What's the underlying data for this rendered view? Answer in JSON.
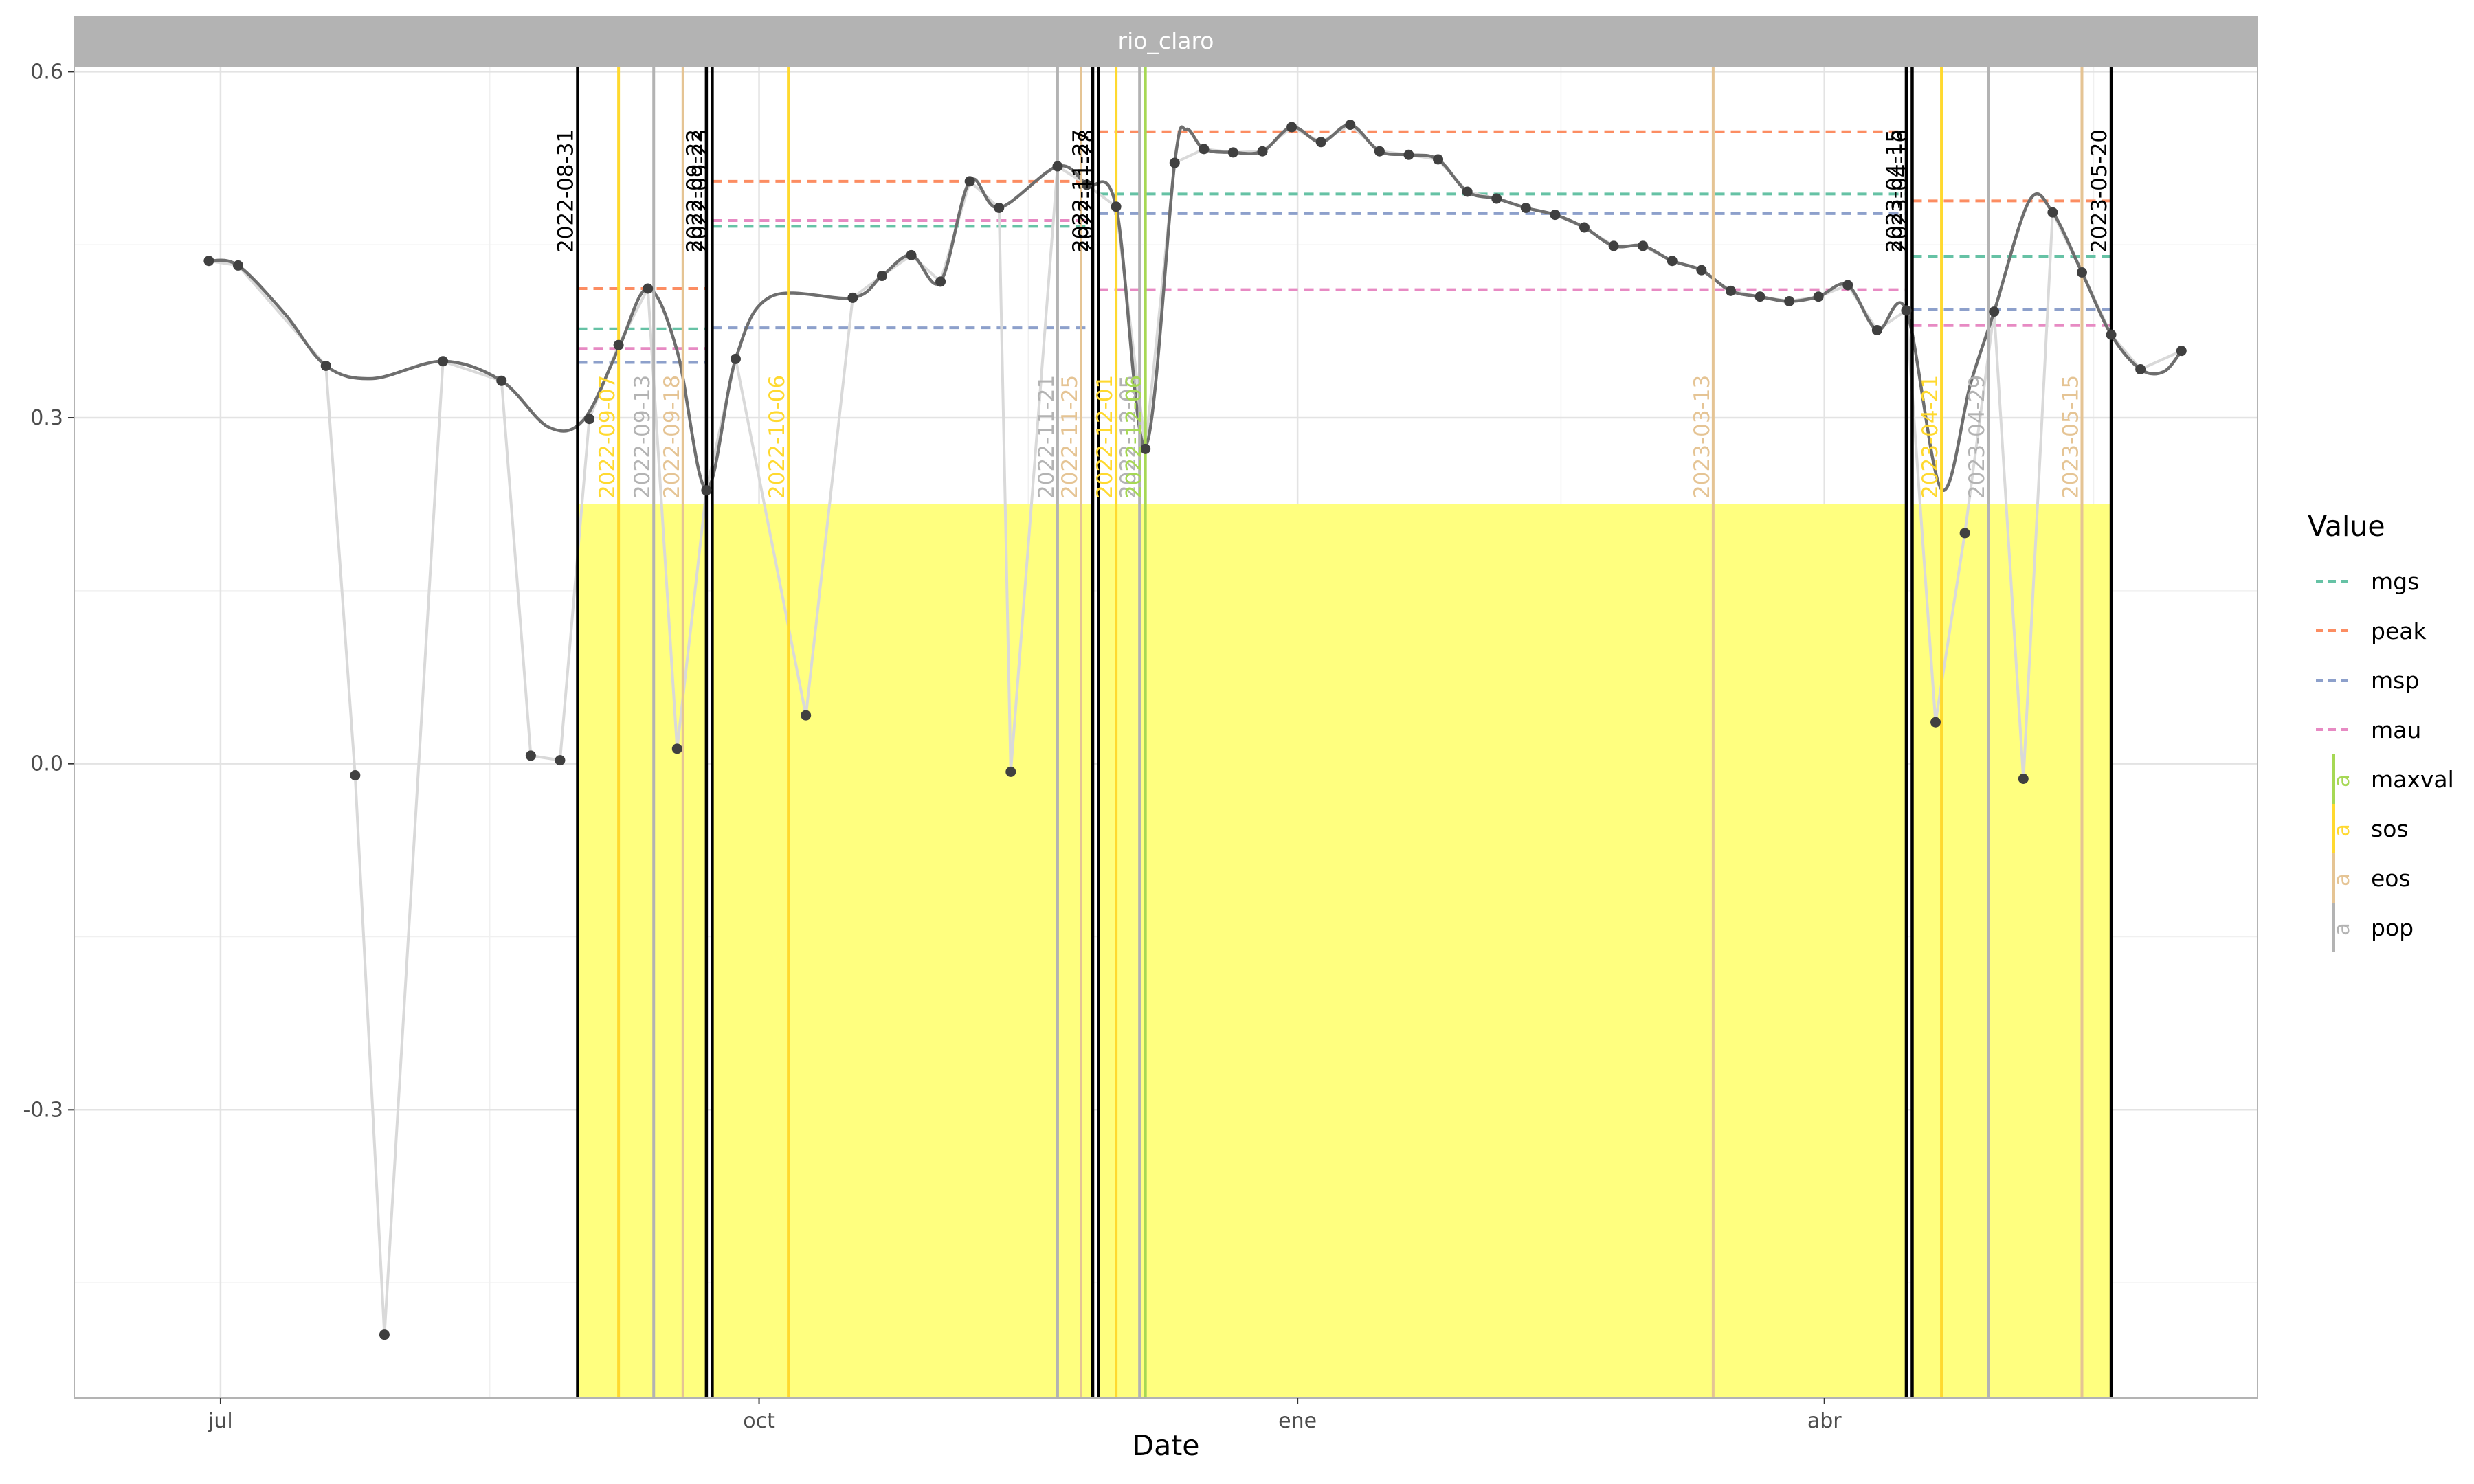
{
  "colors": {
    "mgs": "#66c2a5",
    "peak": "#fc8d62",
    "msp": "#8da0cb",
    "mau": "#e78ac3",
    "maxval": "#a6d854",
    "sos": "#ffd92f",
    "eos": "#e5c494",
    "pop": "#b3b3b3",
    "season": "#ffff7f",
    "boundary": "#000000",
    "points": "#404040",
    "smooth": "#6e6e6e",
    "raw": "#d9d9d9",
    "strip": "#b3b3b3"
  },
  "chart_data": {
    "type": "line",
    "facet": "rio_claro",
    "xlabel": "Date",
    "ylabel": "",
    "ylim": [
      -0.55,
      0.605
    ],
    "xlim": [
      "2022-06-06",
      "2023-06-14"
    ],
    "x_ticks": [
      {
        "date": "2022-07-01",
        "label": "jul"
      },
      {
        "date": "2022-10-01",
        "label": "oct"
      },
      {
        "date": "2023-01-01",
        "label": "ene"
      },
      {
        "date": "2023-04-01",
        "label": "abr"
      }
    ],
    "y_ticks": [
      {
        "value": -0.3,
        "label": "-0.3"
      },
      {
        "value": 0.0,
        "label": "0.0"
      },
      {
        "value": 0.3,
        "label": "0.3"
      },
      {
        "value": 0.6,
        "label": "0.6"
      }
    ],
    "grid": true,
    "legend": {
      "title": "Value",
      "position": "right",
      "entries": [
        {
          "key": "mgs",
          "label": "mgs",
          "kind": "dashed"
        },
        {
          "key": "peak",
          "label": "peak",
          "kind": "dashed"
        },
        {
          "key": "msp",
          "label": "msp",
          "kind": "dashed"
        },
        {
          "key": "mau",
          "label": "mau",
          "kind": "dashed"
        },
        {
          "key": "maxval",
          "label": "maxval",
          "kind": "vline",
          "glyph": "a"
        },
        {
          "key": "sos",
          "label": "sos",
          "kind": "vline",
          "glyph": "a"
        },
        {
          "key": "eos",
          "label": "eos",
          "kind": "vline",
          "glyph": "a"
        },
        {
          "key": "pop",
          "label": "pop",
          "kind": "vline",
          "glyph": "a"
        }
      ]
    },
    "seasons": [
      {
        "start": "2022-08-31",
        "end": "2022-09-22",
        "ymax": 0.225,
        "segments": {
          "mgs": 0.377,
          "peak": 0.412,
          "msp": 0.348,
          "mau": 0.36
        }
      },
      {
        "start": "2022-09-23",
        "end": "2022-11-27",
        "ymax": 0.225,
        "segments": {
          "mgs": 0.466,
          "peak": 0.505,
          "msp": 0.378,
          "mau": 0.471
        }
      },
      {
        "start": "2022-11-28",
        "end": "2023-04-15",
        "ymax": 0.225,
        "segments": {
          "mgs": 0.494,
          "peak": 0.548,
          "msp": 0.477,
          "mau": 0.411
        }
      },
      {
        "start": "2023-04-16",
        "end": "2023-05-20",
        "ymax": 0.225,
        "segments": {
          "mgs": 0.44,
          "peak": 0.488,
          "msp": 0.394,
          "mau": 0.38
        }
      }
    ],
    "boundary_lines": [
      {
        "date": "2022-08-31",
        "label": "2022-08-31"
      },
      {
        "date": "2022-09-22",
        "label": "2022-09-22"
      },
      {
        "date": "2022-09-23",
        "label": "2022-09-23"
      },
      {
        "date": "2022-11-27",
        "label": "2022-11-27"
      },
      {
        "date": "2022-11-28",
        "label": "2022-11-28"
      },
      {
        "date": "2023-04-15",
        "label": "2023-04-15"
      },
      {
        "date": "2023-04-16",
        "label": "2023-04-16"
      },
      {
        "date": "2023-05-20",
        "label": "2023-05-20"
      }
    ],
    "phenology_lines": [
      {
        "type": "sos",
        "date": "2022-09-07",
        "label": "2022-09-07"
      },
      {
        "type": "pop",
        "date": "2022-09-13",
        "label": "2022-09-13"
      },
      {
        "type": "eos",
        "date": "2022-09-18",
        "label": "2022-09-18"
      },
      {
        "type": "sos",
        "date": "2022-10-06",
        "label": "2022-10-06"
      },
      {
        "type": "pop",
        "date": "2022-11-21",
        "label": "2022-11-21"
      },
      {
        "type": "eos",
        "date": "2022-11-25",
        "label": "2022-11-25"
      },
      {
        "type": "sos",
        "date": "2022-12-01",
        "label": "2022-12-01"
      },
      {
        "type": "pop",
        "date": "2022-12-05",
        "label": "2022-12-05"
      },
      {
        "type": "maxval",
        "date": "2022-12-06",
        "label": "2022-12-06"
      },
      {
        "type": "eos",
        "date": "2023-03-13",
        "label": "2023-03-13"
      },
      {
        "type": "sos",
        "date": "2023-04-21",
        "label": "2023-04-21"
      },
      {
        "type": "pop",
        "date": "2023-04-29",
        "label": "2023-04-29"
      },
      {
        "type": "eos",
        "date": "2023-05-15",
        "label": "2023-05-15"
      }
    ],
    "raw_points": [
      {
        "x": "2022-06-29",
        "y": 0.436
      },
      {
        "x": "2022-07-04",
        "y": 0.432
      },
      {
        "x": "2022-07-19",
        "y": 0.345
      },
      {
        "x": "2022-07-24",
        "y": -0.01
      },
      {
        "x": "2022-07-29",
        "y": -0.495
      },
      {
        "x": "2022-08-08",
        "y": 0.349
      },
      {
        "x": "2022-08-18",
        "y": 0.332
      },
      {
        "x": "2022-08-23",
        "y": 0.007
      },
      {
        "x": "2022-08-28",
        "y": 0.003
      },
      {
        "x": "2022-09-02",
        "y": 0.299
      },
      {
        "x": "2022-09-07",
        "y": 0.363
      },
      {
        "x": "2022-09-12",
        "y": 0.412
      },
      {
        "x": "2022-09-17",
        "y": 0.013
      },
      {
        "x": "2022-09-22",
        "y": 0.237
      },
      {
        "x": "2022-09-27",
        "y": 0.351
      },
      {
        "x": "2022-10-09",
        "y": 0.042
      },
      {
        "x": "2022-10-17",
        "y": 0.404
      },
      {
        "x": "2022-10-22",
        "y": 0.423
      },
      {
        "x": "2022-10-27",
        "y": 0.441
      },
      {
        "x": "2022-11-01",
        "y": 0.418
      },
      {
        "x": "2022-11-06",
        "y": 0.505
      },
      {
        "x": "2022-11-11",
        "y": 0.482
      },
      {
        "x": "2022-11-13",
        "y": -0.007
      },
      {
        "x": "2022-11-21",
        "y": 0.518
      },
      {
        "x": "2022-11-26",
        "y": 0.502
      },
      {
        "x": "2022-12-01",
        "y": 0.483
      },
      {
        "x": "2022-12-06",
        "y": 0.273
      },
      {
        "x": "2022-12-11",
        "y": 0.521
      },
      {
        "x": "2022-12-16",
        "y": 0.533
      },
      {
        "x": "2022-12-21",
        "y": 0.53
      },
      {
        "x": "2022-12-26",
        "y": 0.531
      },
      {
        "x": "2022-12-31",
        "y": 0.552
      },
      {
        "x": "2023-01-05",
        "y": 0.539
      },
      {
        "x": "2023-01-10",
        "y": 0.554
      },
      {
        "x": "2023-01-15",
        "y": 0.531
      },
      {
        "x": "2023-01-20",
        "y": 0.528
      },
      {
        "x": "2023-01-25",
        "y": 0.524
      },
      {
        "x": "2023-01-30",
        "y": 0.496
      },
      {
        "x": "2023-02-04",
        "y": 0.49
      },
      {
        "x": "2023-02-09",
        "y": 0.482
      },
      {
        "x": "2023-02-14",
        "y": 0.476
      },
      {
        "x": "2023-02-19",
        "y": 0.465
      },
      {
        "x": "2023-02-24",
        "y": 0.449
      },
      {
        "x": "2023-03-01",
        "y": 0.449
      },
      {
        "x": "2023-03-06",
        "y": 0.436
      },
      {
        "x": "2023-03-11",
        "y": 0.428
      },
      {
        "x": "2023-03-16",
        "y": 0.41
      },
      {
        "x": "2023-03-21",
        "y": 0.405
      },
      {
        "x": "2023-03-26",
        "y": 0.401
      },
      {
        "x": "2023-03-31",
        "y": 0.405
      },
      {
        "x": "2023-04-05",
        "y": 0.415
      },
      {
        "x": "2023-04-10",
        "y": 0.376
      },
      {
        "x": "2023-04-15",
        "y": 0.393
      },
      {
        "x": "2023-04-20",
        "y": 0.036
      },
      {
        "x": "2023-04-25",
        "y": 0.2
      },
      {
        "x": "2023-04-30",
        "y": 0.392
      },
      {
        "x": "2023-05-05",
        "y": -0.013
      },
      {
        "x": "2023-05-10",
        "y": 0.478
      },
      {
        "x": "2023-05-15",
        "y": 0.426
      },
      {
        "x": "2023-05-20",
        "y": 0.372
      },
      {
        "x": "2023-05-25",
        "y": 0.342
      },
      {
        "x": "2023-06-01",
        "y": 0.358
      }
    ],
    "smooth_curve": [
      {
        "x": "2022-06-29",
        "y": 0.436
      },
      {
        "x": "2022-07-04",
        "y": 0.432
      },
      {
        "x": "2022-07-12",
        "y": 0.39
      },
      {
        "x": "2022-07-19",
        "y": 0.345
      },
      {
        "x": "2022-07-27",
        "y": 0.334
      },
      {
        "x": "2022-08-08",
        "y": 0.349
      },
      {
        "x": "2022-08-18",
        "y": 0.332
      },
      {
        "x": "2022-08-26",
        "y": 0.292
      },
      {
        "x": "2022-09-01",
        "y": 0.298
      },
      {
        "x": "2022-09-07",
        "y": 0.36
      },
      {
        "x": "2022-09-12",
        "y": 0.412
      },
      {
        "x": "2022-09-17",
        "y": 0.358
      },
      {
        "x": "2022-09-22",
        "y": 0.238
      },
      {
        "x": "2022-09-27",
        "y": 0.351
      },
      {
        "x": "2022-10-03",
        "y": 0.405
      },
      {
        "x": "2022-10-17",
        "y": 0.404
      },
      {
        "x": "2022-10-22",
        "y": 0.423
      },
      {
        "x": "2022-10-27",
        "y": 0.441
      },
      {
        "x": "2022-11-01",
        "y": 0.418
      },
      {
        "x": "2022-11-06",
        "y": 0.505
      },
      {
        "x": "2022-11-11",
        "y": 0.482
      },
      {
        "x": "2022-11-21",
        "y": 0.518
      },
      {
        "x": "2022-11-26",
        "y": 0.502
      },
      {
        "x": "2022-12-01",
        "y": 0.483
      },
      {
        "x": "2022-12-06",
        "y": 0.275
      },
      {
        "x": "2022-12-11",
        "y": 0.521
      },
      {
        "x": "2022-12-13",
        "y": 0.55
      },
      {
        "x": "2022-12-16",
        "y": 0.533
      },
      {
        "x": "2022-12-21",
        "y": 0.53
      },
      {
        "x": "2022-12-26",
        "y": 0.531
      },
      {
        "x": "2022-12-31",
        "y": 0.552
      },
      {
        "x": "2023-01-05",
        "y": 0.539
      },
      {
        "x": "2023-01-10",
        "y": 0.554
      },
      {
        "x": "2023-01-15",
        "y": 0.531
      },
      {
        "x": "2023-01-20",
        "y": 0.528
      },
      {
        "x": "2023-01-25",
        "y": 0.524
      },
      {
        "x": "2023-01-30",
        "y": 0.496
      },
      {
        "x": "2023-02-04",
        "y": 0.49
      },
      {
        "x": "2023-02-09",
        "y": 0.482
      },
      {
        "x": "2023-02-14",
        "y": 0.476
      },
      {
        "x": "2023-02-19",
        "y": 0.465
      },
      {
        "x": "2023-02-24",
        "y": 0.449
      },
      {
        "x": "2023-03-01",
        "y": 0.449
      },
      {
        "x": "2023-03-06",
        "y": 0.436
      },
      {
        "x": "2023-03-11",
        "y": 0.428
      },
      {
        "x": "2023-03-16",
        "y": 0.41
      },
      {
        "x": "2023-03-21",
        "y": 0.405
      },
      {
        "x": "2023-03-26",
        "y": 0.401
      },
      {
        "x": "2023-03-31",
        "y": 0.405
      },
      {
        "x": "2023-04-05",
        "y": 0.415
      },
      {
        "x": "2023-04-10",
        "y": 0.376
      },
      {
        "x": "2023-04-15",
        "y": 0.393
      },
      {
        "x": "2023-04-21",
        "y": 0.238
      },
      {
        "x": "2023-04-26",
        "y": 0.33
      },
      {
        "x": "2023-04-30",
        "y": 0.392
      },
      {
        "x": "2023-05-06",
        "y": 0.488
      },
      {
        "x": "2023-05-10",
        "y": 0.478
      },
      {
        "x": "2023-05-15",
        "y": 0.426
      },
      {
        "x": "2023-05-20",
        "y": 0.372
      },
      {
        "x": "2023-05-25",
        "y": 0.342
      },
      {
        "x": "2023-05-29",
        "y": 0.34
      },
      {
        "x": "2023-06-01",
        "y": 0.358
      }
    ]
  }
}
